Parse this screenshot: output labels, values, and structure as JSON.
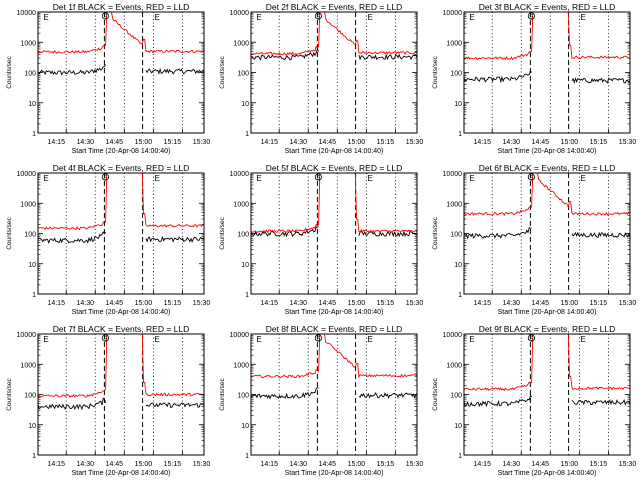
{
  "chart_data": [
    {
      "type": "line",
      "title": "Det 1f BLACK = Events, RED = LLD",
      "ylabel": "Counts/sec",
      "xlabel": "Start Time (20-Apr-08 14:00:40)",
      "y_scale": "log",
      "ylim": [
        1,
        10000
      ],
      "y_ticks": [
        "1",
        "10",
        "100",
        "1000",
        "10000"
      ],
      "x_tick_labels": [
        "14:15",
        "14:30",
        "14:45",
        "15:00",
        "15:15",
        "15:30"
      ],
      "markers": [
        "E",
        "S",
        "E"
      ],
      "series": [
        {
          "name": "BLACK = Events",
          "color": "#000000",
          "pre": 100,
          "post": 110,
          "peak": 300
        },
        {
          "name": "RED = LLD",
          "color": "#ff0000",
          "pre": 480,
          "post": 500,
          "peak": 10000,
          "decay": true
        }
      ]
    },
    {
      "type": "line",
      "title": "Det 2f BLACK = Events, RED = LLD",
      "ylabel": "Counts/sec",
      "xlabel": "Start Time (20-Apr-08 14:00:40)",
      "y_scale": "log",
      "ylim": [
        1,
        10000
      ],
      "y_ticks": [
        "1",
        "10",
        "100",
        "1000",
        "10000"
      ],
      "x_tick_labels": [
        "14:15",
        "14:30",
        "14:45",
        "15:00",
        "15:15",
        "15:30"
      ],
      "markers": [
        "E",
        "S",
        "E"
      ],
      "series": [
        {
          "name": "BLACK = Events",
          "color": "#000000",
          "pre": 320,
          "post": 330,
          "peak": 800
        },
        {
          "name": "RED = LLD",
          "color": "#ff0000",
          "pre": 420,
          "post": 450,
          "peak": 10000,
          "decay": true
        }
      ]
    },
    {
      "type": "line",
      "title": "Det 3f BLACK = Events, RED = LLD",
      "ylabel": "Counts/sec",
      "xlabel": "Start Time (20-Apr-08 14:00:40)",
      "y_scale": "log",
      "ylim": [
        1,
        10000
      ],
      "y_ticks": [
        "1",
        "10",
        "100",
        "1000",
        "10000"
      ],
      "x_tick_labels": [
        "14:15",
        "14:30",
        "14:45",
        "15:00",
        "15:15",
        "15:30"
      ],
      "markers": [
        "E",
        "S",
        "E"
      ],
      "series": [
        {
          "name": "BLACK = Events",
          "color": "#000000",
          "pre": 60,
          "post": 55,
          "peak": 200
        },
        {
          "name": "RED = LLD",
          "color": "#ff0000",
          "pre": 300,
          "post": 320,
          "peak": 10000,
          "decay": false
        }
      ]
    },
    {
      "type": "line",
      "title": "Det 4f BLACK = Events, RED = LLD",
      "ylabel": "Counts/sec",
      "xlabel": "Start Time (20-Apr-08 14:00:40)",
      "y_scale": "log",
      "ylim": [
        1,
        10000
      ],
      "y_ticks": [
        "1",
        "10",
        "100",
        "1000",
        "10000"
      ],
      "x_tick_labels": [
        "14:15",
        "14:30",
        "14:45",
        "15:00",
        "15:15",
        "15:30"
      ],
      "markers": [
        "E",
        "S",
        "E"
      ],
      "series": [
        {
          "name": "BLACK = Events",
          "color": "#000000",
          "pre": 60,
          "post": 65,
          "peak": 200
        },
        {
          "name": "RED = LLD",
          "color": "#ff0000",
          "pre": 150,
          "post": 180,
          "peak": 10000,
          "decay": false
        }
      ]
    },
    {
      "type": "line",
      "title": "Det 5f BLACK = Events, RED = LLD",
      "ylabel": "Counts/sec",
      "xlabel": "Start Time (20-Apr-08 14:00:40)",
      "y_scale": "log",
      "ylim": [
        1,
        10000
      ],
      "y_ticks": [
        "1",
        "10",
        "100",
        "1000",
        "10000"
      ],
      "x_tick_labels": [
        "14:15",
        "14:30",
        "14:45",
        "15:00",
        "15:15",
        "15:30"
      ],
      "markers": [
        "E",
        "S",
        "E"
      ],
      "series": [
        {
          "name": "BLACK = Events",
          "color": "#000000",
          "pre": 100,
          "post": 100,
          "peak": 300
        },
        {
          "name": "RED = LLD",
          "color": "#ff0000",
          "pre": 120,
          "post": 120,
          "peak": 10000,
          "decay": false
        }
      ]
    },
    {
      "type": "line",
      "title": "Det 6f BLACK = Events, RED = LLD",
      "ylabel": "Counts/sec",
      "xlabel": "Start Time (20-Apr-08 14:00:40)",
      "y_scale": "log",
      "ylim": [
        1,
        10000
      ],
      "y_ticks": [
        "1",
        "10",
        "100",
        "1000",
        "10000"
      ],
      "x_tick_labels": [
        "14:15",
        "14:30",
        "14:45",
        "15:00",
        "15:15",
        "15:30"
      ],
      "markers": [
        "E",
        "S",
        "E"
      ],
      "series": [
        {
          "name": "BLACK = Events",
          "color": "#000000",
          "pre": 85,
          "post": 90,
          "peak": 300
        },
        {
          "name": "RED = LLD",
          "color": "#ff0000",
          "pre": 450,
          "post": 450,
          "peak": 10000,
          "decay": true
        }
      ]
    },
    {
      "type": "line",
      "title": "Det 7f BLACK = Events, RED = LLD",
      "ylabel": "Counts/sec",
      "xlabel": "Start Time (20-Apr-08 14:00:40)",
      "y_scale": "log",
      "ylim": [
        1,
        10000
      ],
      "y_ticks": [
        "1",
        "10",
        "100",
        "1000",
        "10000"
      ],
      "x_tick_labels": [
        "14:15",
        "14:30",
        "14:45",
        "15:00",
        "15:15",
        "15:30"
      ],
      "markers": [
        "E",
        "S",
        "E"
      ],
      "series": [
        {
          "name": "BLACK = Events",
          "color": "#000000",
          "pre": 40,
          "post": 45,
          "peak": 150
        },
        {
          "name": "RED = LLD",
          "color": "#ff0000",
          "pre": 90,
          "post": 100,
          "peak": 10000,
          "decay": false
        }
      ]
    },
    {
      "type": "line",
      "title": "Det 8f BLACK = Events, RED = LLD",
      "ylabel": "Counts/sec",
      "xlabel": "Start Time (20-Apr-08 14:00:40)",
      "y_scale": "log",
      "ylim": [
        1,
        10000
      ],
      "y_ticks": [
        "1",
        "10",
        "100",
        "1000",
        "10000"
      ],
      "x_tick_labels": [
        "14:15",
        "14:30",
        "14:45",
        "15:00",
        "15:15",
        "15:30"
      ],
      "markers": [
        "E",
        "S",
        "E"
      ],
      "series": [
        {
          "name": "BLACK = Events",
          "color": "#000000",
          "pre": 90,
          "post": 95,
          "peak": 300
        },
        {
          "name": "RED = LLD",
          "color": "#ff0000",
          "pre": 400,
          "post": 420,
          "peak": 10000,
          "decay": true
        }
      ]
    },
    {
      "type": "line",
      "title": "Det 9f BLACK = Events, RED = LLD",
      "ylabel": "Counts/sec",
      "xlabel": "Start Time (20-Apr-08 14:00:40)",
      "y_scale": "log",
      "ylim": [
        1,
        10000
      ],
      "y_ticks": [
        "1",
        "10",
        "100",
        "1000",
        "10000"
      ],
      "x_tick_labels": [
        "14:15",
        "14:30",
        "14:45",
        "15:00",
        "15:15",
        "15:30"
      ],
      "markers": [
        "E",
        "S",
        "E"
      ],
      "series": [
        {
          "name": "BLACK = Events",
          "color": "#000000",
          "pre": 50,
          "post": 55,
          "peak": 200
        },
        {
          "name": "RED = LLD",
          "color": "#ff0000",
          "pre": 150,
          "post": 160,
          "peak": 10000,
          "decay": false
        }
      ]
    }
  ]
}
